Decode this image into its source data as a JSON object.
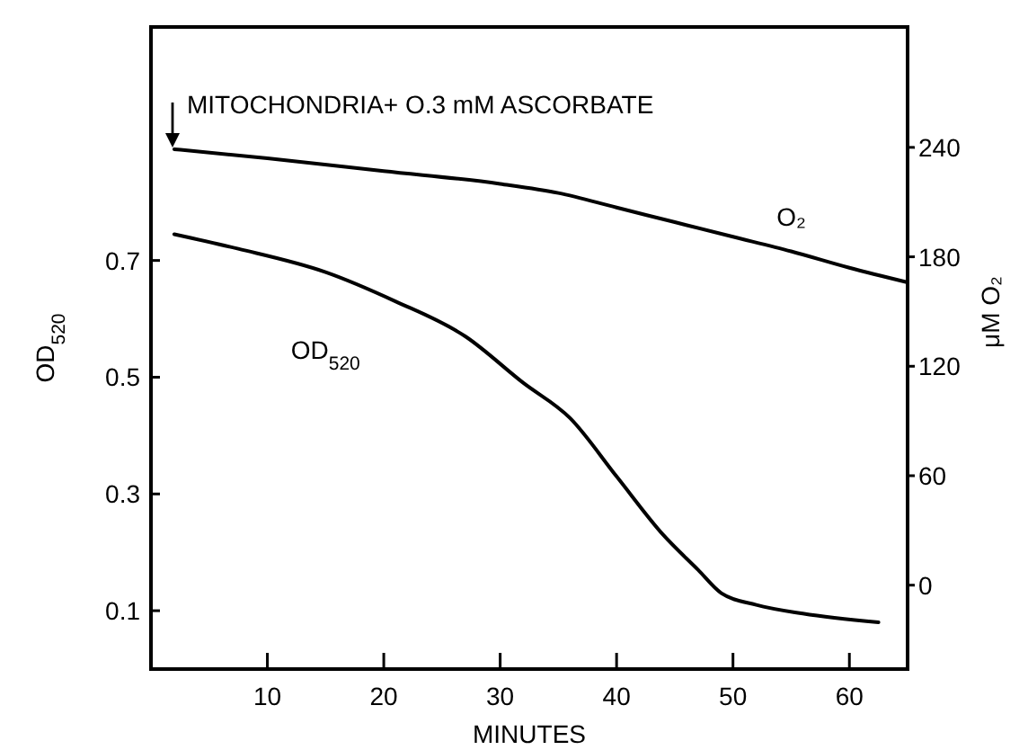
{
  "chart_data": {
    "type": "line",
    "xlabel": "MINUTES",
    "ylabel": "OD$_{520}$",
    "y2label": "μM O₂",
    "annotations": [
      "MITOCHONDRIA+ O.3 mM ASCORBATE"
    ],
    "xlim": [
      0,
      65
    ],
    "xticks": [
      10,
      20,
      30,
      40,
      50,
      60
    ],
    "ylim": [
      0,
      1.1
    ],
    "yticks": [
      0.1,
      0.3,
      0.5,
      0.7
    ],
    "y2lim": [
      -46,
      306
    ],
    "y2ticks": [
      0,
      60,
      120,
      180,
      240
    ],
    "line_style": "solid",
    "series": [
      {
        "name": "O₂",
        "color": "#000000",
        "axis": "y2",
        "x": [
          2,
          10,
          20,
          30,
          35,
          40,
          45,
          50,
          55,
          60,
          65
        ],
        "values": [
          239,
          234,
          227,
          220,
          215,
          207,
          199,
          191,
          183,
          174,
          166
        ]
      },
      {
        "name": "OD$_{520}$",
        "color": "#000000",
        "x": [
          2,
          7.5,
          15,
          21,
          27,
          32,
          36,
          40,
          44,
          47,
          49,
          52,
          56,
          62.5
        ],
        "values": [
          0.745,
          0.72,
          0.68,
          0.63,
          0.57,
          0.49,
          0.43,
          0.33,
          0.23,
          0.17,
          0.13,
          0.11,
          0.095,
          0.08
        ]
      }
    ]
  }
}
